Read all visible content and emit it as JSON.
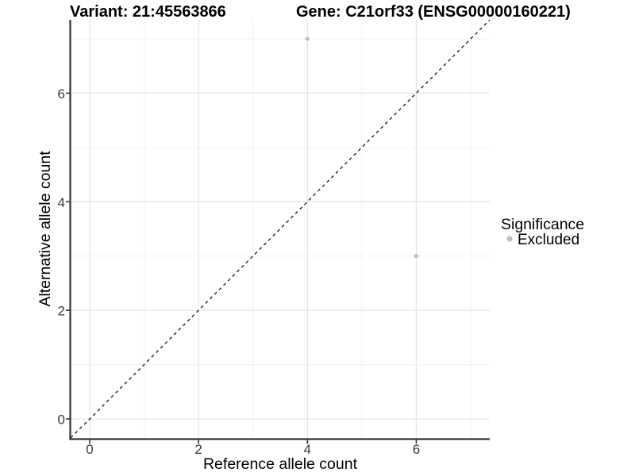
{
  "chart_data": {
    "type": "scatter",
    "title_left": "Variant: 21:45563866",
    "title_right": "Gene: C21orf33 (ENSG00000160221)",
    "xlabel": "Reference allele count",
    "ylabel": "Alternative allele count",
    "xlim": [
      -0.35,
      7.35
    ],
    "ylim": [
      -0.35,
      7.35
    ],
    "x_major_ticks": [
      0,
      2,
      4,
      6
    ],
    "y_major_ticks": [
      0,
      2,
      4,
      6
    ],
    "x_minor_ticks": [
      1,
      3,
      5,
      7
    ],
    "y_minor_ticks": [
      1,
      3,
      5,
      7
    ],
    "grid": true,
    "identity_line": {
      "show": true,
      "equation": "y = x",
      "style": "dashed",
      "color": "#000000"
    },
    "series": [
      {
        "name": "Excluded",
        "color": "#bebebe",
        "points": [
          {
            "x": 4,
            "y": 7
          },
          {
            "x": 6,
            "y": 3
          }
        ]
      }
    ],
    "legend": {
      "title": "Significance",
      "position": "right",
      "items": [
        {
          "label": "Excluded",
          "color": "#bebebe",
          "marker": "circle"
        }
      ]
    },
    "colors": {
      "grid_major": "#e3e3e3",
      "grid_minor": "#f0f0f0",
      "axis": "#333333",
      "point": "#bebebe"
    }
  }
}
